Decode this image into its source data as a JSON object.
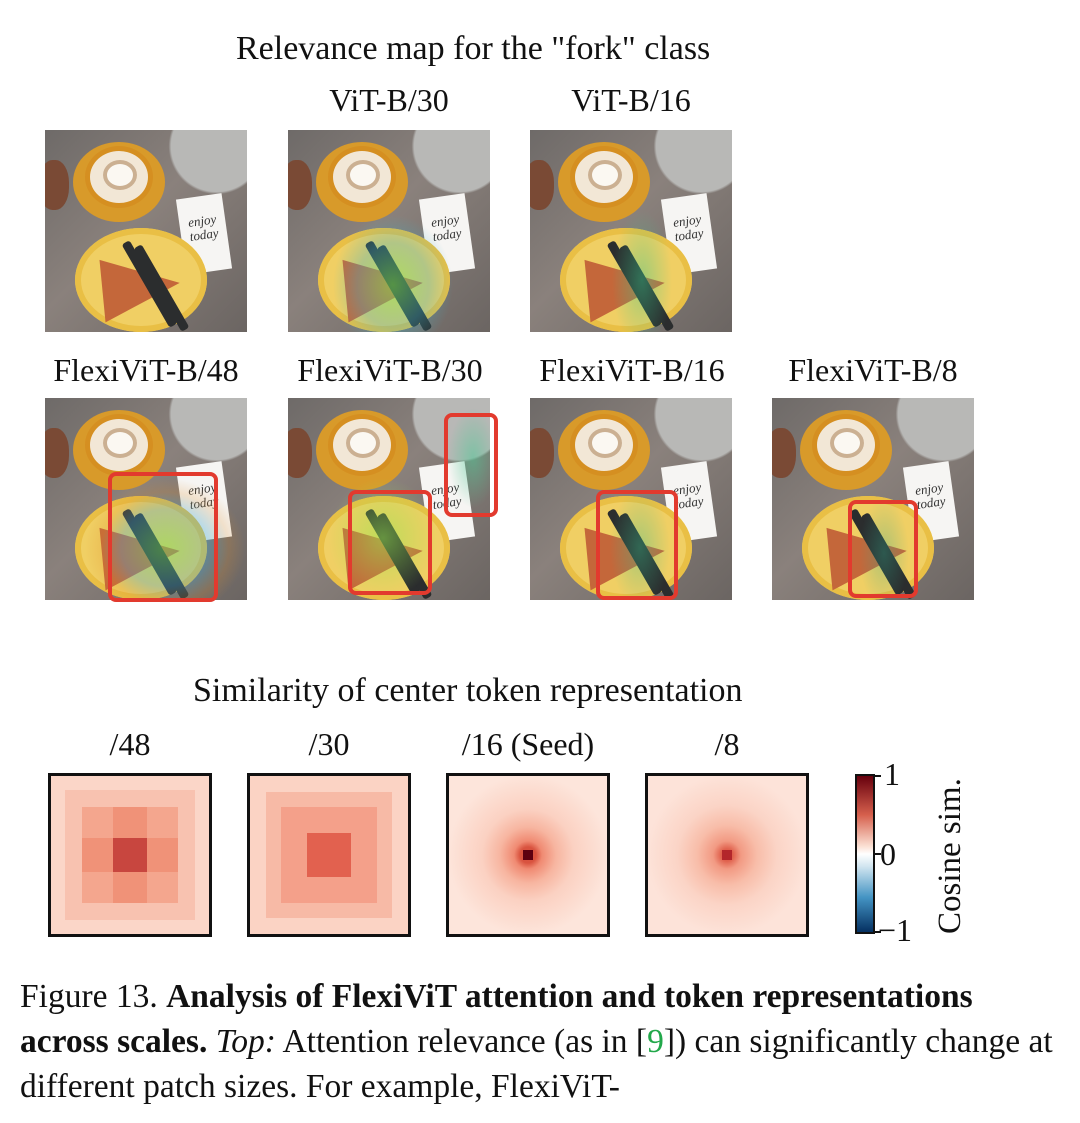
{
  "top_title": "Relevance map for the \"fork\" class",
  "row1_labels": [
    "ViT-B/30",
    "ViT-B/16"
  ],
  "row2_labels": [
    "FlexiViT-B/48",
    "FlexiViT-B/30",
    "FlexiViT-B/16",
    "FlexiViT-B/8"
  ],
  "card_text": "enjoy today",
  "bottom_title": "Similarity of center token representation",
  "sim_labels": [
    "/48",
    "/30",
    "/16 (Seed)",
    "/8"
  ],
  "colorbar": {
    "label": "Cosine sim.",
    "ticks": [
      "1",
      "0",
      "−1"
    ]
  },
  "caption": {
    "fig_label": "Figure 13.",
    "bold_title": "Analysis of FlexiViT attention and token representations across scales.",
    "top_label": "Top:",
    "text_before_ref": "Attention relevance (as in [",
    "ref": "9",
    "text_after_ref": "]) can significantly change at different patch sizes. For example, FlexiViT-"
  },
  "colors": {
    "box": "#e23a2e",
    "ref": "#22a84a"
  }
}
